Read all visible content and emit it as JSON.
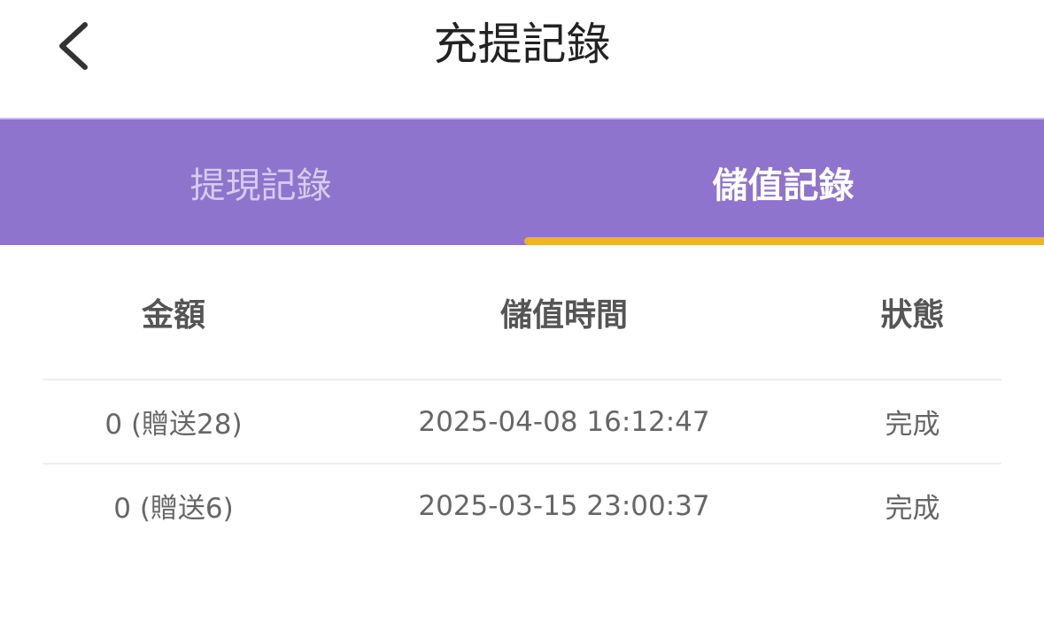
{
  "header": {
    "title": "充提記錄",
    "back_icon": "chevron-left-icon"
  },
  "tabs": [
    {
      "label": "提現記錄",
      "active": false
    },
    {
      "label": "儲值記錄",
      "active": true
    }
  ],
  "colors": {
    "tab_bar": "#8E74CC",
    "indicator": "#EBB524"
  },
  "table": {
    "columns": [
      "金額",
      "儲值時間",
      "狀態"
    ],
    "rows": [
      {
        "amount": "0 (贈送28)",
        "time": "2025-04-08 16:12:47",
        "status": "完成"
      },
      {
        "amount": "0 (贈送6)",
        "time": "2025-03-15 23:00:37",
        "status": "完成"
      }
    ]
  }
}
